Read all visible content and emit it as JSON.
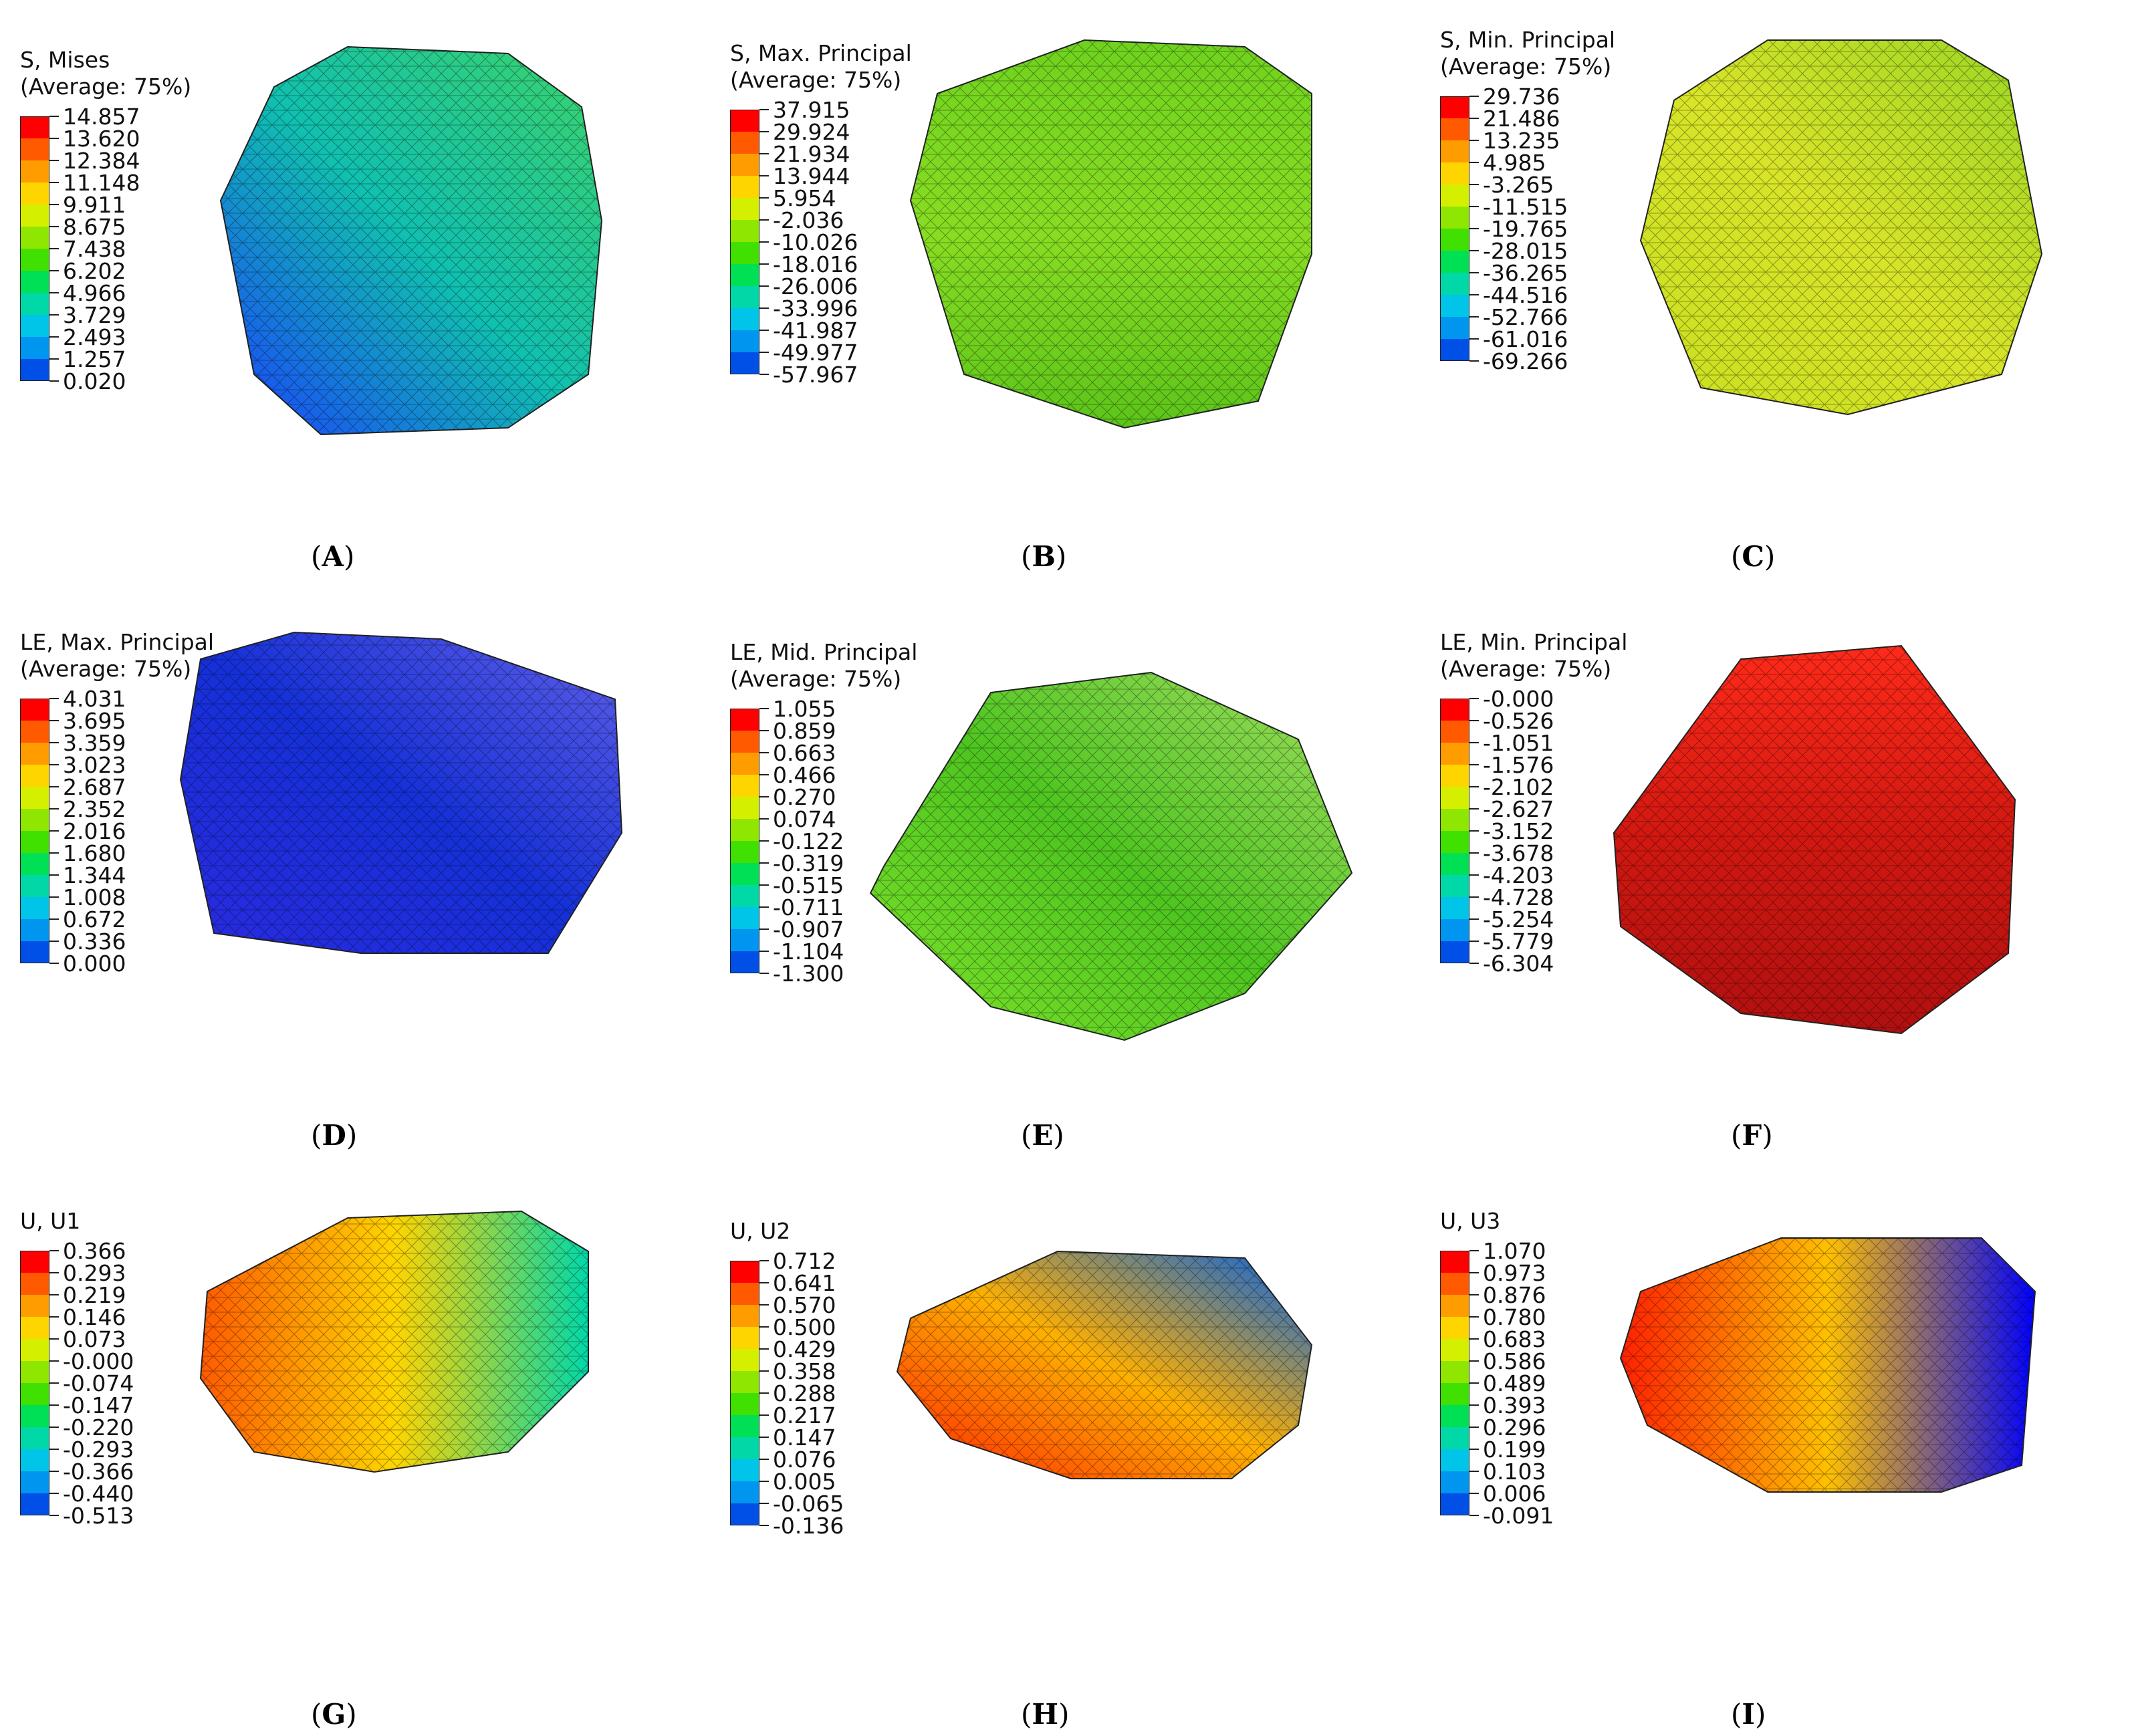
{
  "scale_colors": [
    "#ff0000",
    "#ff5a00",
    "#ff9c00",
    "#ffd500",
    "#d4f000",
    "#8fe600",
    "#40e000",
    "#00e054",
    "#00d8a8",
    "#00c4e8",
    "#0096f0",
    "#0050e8",
    "#0000ff"
  ],
  "panels": [
    {
      "id": "A",
      "title1": "S, Mises",
      "title2": "(Average: 75%)",
      "values": [
        "14.857",
        "13.620",
        "12.384",
        "11.148",
        "9.911",
        "8.675",
        "7.438",
        "6.202",
        "4.966",
        "3.729",
        "2.493",
        "1.257",
        "0.020"
      ]
    },
    {
      "id": "B",
      "title1": "S, Max. Principal",
      "title2": "(Average: 75%)",
      "values": [
        "37.915",
        "29.924",
        "21.934",
        "13.944",
        "5.954",
        "-2.036",
        "-10.026",
        "-18.016",
        "-26.006",
        "-33.996",
        "-41.987",
        "-49.977",
        "-57.967"
      ]
    },
    {
      "id": "C",
      "title1": "S, Min. Principal",
      "title2": "(Average: 75%)",
      "values": [
        "29.736",
        "21.486",
        "13.235",
        "4.985",
        "-3.265",
        "-11.515",
        "-19.765",
        "-28.015",
        "-36.265",
        "-44.516",
        "-52.766",
        "-61.016",
        "-69.266"
      ]
    },
    {
      "id": "D",
      "title1": "LE, Max. Principal",
      "title2": "(Average: 75%)",
      "values": [
        "4.031",
        "3.695",
        "3.359",
        "3.023",
        "2.687",
        "2.352",
        "2.016",
        "1.680",
        "1.344",
        "1.008",
        "0.672",
        "0.336",
        "0.000"
      ]
    },
    {
      "id": "E",
      "title1": "LE, Mid. Principal",
      "title2": "(Average: 75%)",
      "values": [
        "1.055",
        "0.859",
        "0.663",
        "0.466",
        "0.270",
        "0.074",
        "-0.122",
        "-0.319",
        "-0.515",
        "-0.711",
        "-0.907",
        "-1.104",
        "-1.300"
      ]
    },
    {
      "id": "F",
      "title1": "LE, Min. Principal",
      "title2": "(Average: 75%)",
      "values": [
        "-0.000",
        "-0.526",
        "-1.051",
        "-1.576",
        "-2.102",
        "-2.627",
        "-3.152",
        "-3.678",
        "-4.203",
        "-4.728",
        "-5.254",
        "-5.779",
        "-6.304"
      ]
    },
    {
      "id": "G",
      "title1": "U, U1",
      "title2": "",
      "values": [
        "0.366",
        "0.293",
        "0.219",
        "0.146",
        "0.073",
        "-0.000",
        "-0.074",
        "-0.147",
        "-0.220",
        "-0.293",
        "-0.366",
        "-0.440",
        "-0.513"
      ]
    },
    {
      "id": "H",
      "title1": "U, U2",
      "title2": "",
      "values": [
        "0.712",
        "0.641",
        "0.570",
        "0.500",
        "0.429",
        "0.358",
        "0.288",
        "0.217",
        "0.147",
        "0.076",
        "0.005",
        "-0.065",
        "-0.136"
      ]
    },
    {
      "id": "I",
      "title1": "U, U3",
      "title2": "",
      "values": [
        "1.070",
        "0.973",
        "0.876",
        "0.780",
        "0.683",
        "0.586",
        "0.489",
        "0.393",
        "0.296",
        "0.199",
        "0.103",
        "0.006",
        "-0.091"
      ]
    }
  ],
  "captions": [
    "A",
    "B",
    "C",
    "D",
    "E",
    "F",
    "G",
    "H",
    "I"
  ]
}
